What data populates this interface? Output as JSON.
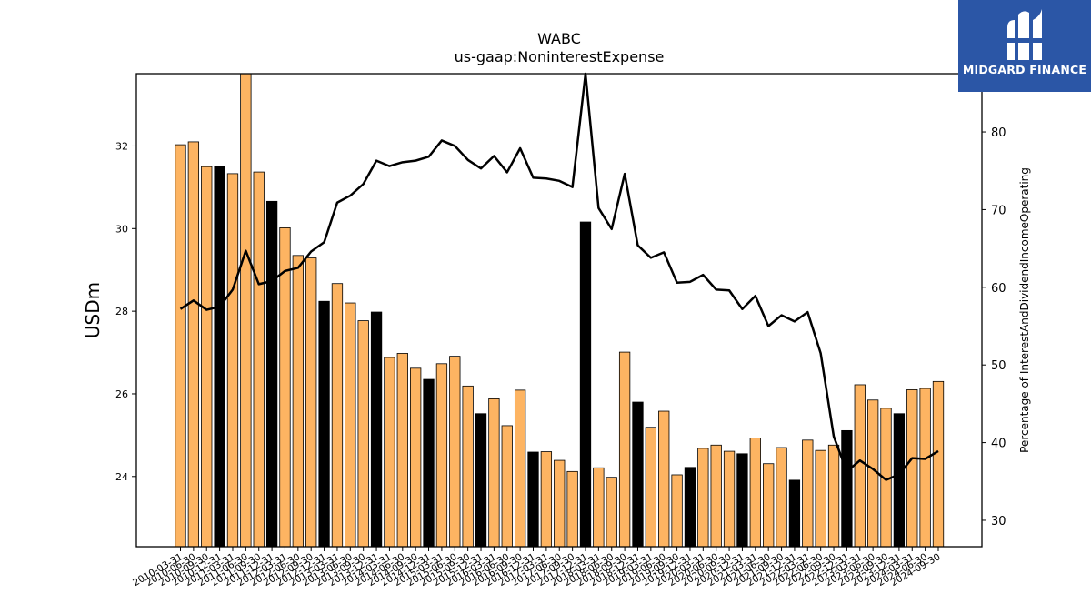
{
  "chart_data": {
    "type": "bar+line",
    "title": "WABC",
    "subtitle": "us-gaap:NoninterestExpense",
    "ylabel": "USDm",
    "y2label": "Percentage of InterestAndDividendIncomeOperating",
    "ylim": [
      22.3,
      33.75
    ],
    "y2lim": [
      26.6,
      87.5
    ],
    "yticks": [
      24,
      26,
      28,
      30,
      32
    ],
    "y2ticks": [
      30,
      40,
      50,
      60,
      70,
      80
    ],
    "colors": {
      "bar_quarter": "#fdb462",
      "bar_annual": "#000000",
      "line": "#000000"
    },
    "categories": [
      "2010-03-31",
      "2010-06-30",
      "2010-09-30",
      "2010-12-31",
      "2011-03-31",
      "2011-06-30",
      "2011-09-30",
      "2011-12-31",
      "2012-03-31",
      "2012-06-30",
      "2012-09-30",
      "2012-12-31",
      "2013-03-31",
      "2013-06-30",
      "2013-09-30",
      "2013-12-31",
      "2014-03-31",
      "2014-06-30",
      "2014-09-30",
      "2014-12-31",
      "2015-03-31",
      "2015-06-30",
      "2015-09-30",
      "2015-12-31",
      "2016-03-31",
      "2016-06-30",
      "2016-09-30",
      "2016-12-31",
      "2017-03-31",
      "2017-06-30",
      "2017-09-30",
      "2017-12-31",
      "2018-03-31",
      "2018-06-30",
      "2018-09-30",
      "2018-12-31",
      "2019-03-31",
      "2019-06-30",
      "2019-09-30",
      "2019-12-31",
      "2020-03-31",
      "2020-06-30",
      "2020-09-30",
      "2020-12-31",
      "2021-03-31",
      "2021-06-30",
      "2021-09-30",
      "2021-12-31",
      "2022-03-31",
      "2022-06-30",
      "2022-09-30",
      "2022-12-31",
      "2023-03-31",
      "2023-06-30",
      "2023-09-30",
      "2023-12-31",
      "2024-03-31",
      "2024-06-30",
      "2024-09-30"
    ],
    "tick_labels": [
      "2010-03-31",
      "2010-06-30",
      "2010-09-30",
      "2010-12-31",
      "2011-03-31",
      "2011-06-30",
      "2011-09-30",
      "2011-12-31",
      "2012-03-31",
      "2012-06-30",
      "2012-09-30",
      "2012-12-31",
      "2013-03-31",
      "2013-06-30",
      "2013-09-30",
      "2013-12-31",
      "2014-03-31",
      "2014-06-30",
      "2014-09-30",
      "2014-12-31",
      "2015-03-31",
      "2015-06-30",
      "2015-09-30",
      "2015-12-31",
      "2016-03-31",
      "2016-06-30",
      "2016-09-30",
      "2016-12-31",
      "2017-03-31",
      "2017-06-30",
      "2017-09-30",
      "2017-12-31",
      "2018-03-31",
      "2018-06-30",
      "2018-09-30",
      "2018-12-31",
      "2019-03-31",
      "2019-06-30",
      "2019-09-30",
      "2019-12-31",
      "2020-03-31",
      "2020-06-30",
      "2020-09-30",
      "2020-12-31",
      "2021-03-31",
      "2021-06-30",
      "2021-09-30",
      "2021-12-31",
      "2022-03-31",
      "2022-06-30",
      "2022-09-30",
      "2022-12-31",
      "2023-03-31",
      "2023-06-30",
      "2023-09-30",
      "2023-12-31",
      "2024-03-31",
      "2024-06-30",
      "2024-09-30"
    ],
    "annual_flags": [
      0,
      0,
      0,
      1,
      0,
      0,
      0,
      1,
      0,
      0,
      0,
      1,
      0,
      0,
      0,
      1,
      0,
      0,
      0,
      1,
      0,
      0,
      0,
      1,
      0,
      0,
      0,
      1,
      0,
      0,
      0,
      1,
      0,
      0,
      0,
      1,
      0,
      0,
      0,
      1,
      0,
      0,
      0,
      1,
      0,
      0,
      0,
      1,
      0,
      0,
      0,
      1,
      0,
      0,
      0,
      1,
      0,
      0,
      0
    ],
    "series": [
      {
        "kind": "bar",
        "values": [
          32.03,
          32.1,
          31.5,
          31.5,
          31.33,
          33.75,
          31.37,
          30.66,
          30.02,
          29.35,
          29.29,
          28.24,
          28.67,
          28.2,
          27.77,
          27.98,
          26.88,
          26.98,
          26.62,
          26.35,
          26.73,
          26.91,
          26.19,
          25.52,
          25.88,
          25.23,
          26.09,
          24.59,
          24.6,
          24.39,
          24.12,
          30.16,
          24.21,
          23.98,
          27.01,
          25.8,
          25.19,
          25.58,
          24.04,
          24.22,
          24.68,
          24.76,
          24.61,
          24.55,
          24.93,
          24.31,
          24.7,
          23.91,
          24.88,
          24.63,
          24.76,
          25.11,
          26.22,
          25.85,
          25.65,
          25.52,
          26.1,
          26.13,
          26.3
        ]
      },
      {
        "kind": "line",
        "axis": "right",
        "values": [
          57.2,
          58.3,
          57.1,
          57.5,
          59.7,
          64.7,
          60.4,
          60.8,
          62.1,
          62.5,
          64.6,
          65.8,
          70.9,
          71.8,
          73.3,
          76.3,
          75.6,
          76.1,
          76.3,
          76.8,
          78.9,
          78.2,
          76.4,
          75.3,
          76.9,
          74.8,
          77.9,
          74.1,
          74.0,
          73.7,
          72.9,
          87.7,
          70.2,
          67.5,
          74.6,
          65.4,
          63.8,
          64.5,
          60.6,
          60.7,
          61.6,
          59.7,
          59.6,
          57.2,
          58.9,
          55.0,
          56.4,
          55.6,
          56.8,
          51.5,
          40.8,
          36.3,
          37.7,
          36.6,
          35.2,
          35.9,
          38.0,
          37.9,
          38.9
        ]
      }
    ]
  },
  "logo": {
    "text": "MIDGARD FINANCE",
    "icon": "midgard-logo-icon",
    "bg": "#2b56a6"
  }
}
